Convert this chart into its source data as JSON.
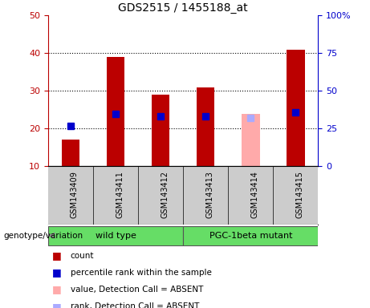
{
  "title": "GDS2515 / 1455188_at",
  "samples": [
    "GSM143409",
    "GSM143411",
    "GSM143412",
    "GSM143413",
    "GSM143414",
    "GSM143415"
  ],
  "count_values": [
    17,
    39,
    29,
    31,
    24,
    41
  ],
  "rank_values": [
    27,
    35,
    33,
    33,
    32,
    36
  ],
  "absent_flags": [
    false,
    false,
    false,
    false,
    true,
    false
  ],
  "bar_color_present": "#bb0000",
  "bar_color_absent": "#ffaaaa",
  "rank_color_present": "#0000cc",
  "rank_color_absent": "#aaaaff",
  "ylim_left": [
    10,
    50
  ],
  "ylim_right": [
    0,
    100
  ],
  "yticks_left": [
    10,
    20,
    30,
    40,
    50
  ],
  "yticks_right": [
    0,
    25,
    50,
    75,
    100
  ],
  "ytick_labels_right": [
    "0",
    "25",
    "50",
    "75",
    "100%"
  ],
  "grid_lines": [
    20,
    30,
    40
  ],
  "group1_label": "wild type",
  "group2_label": "PGC-1beta mutant",
  "group1_indices": [
    0,
    1,
    2
  ],
  "group2_indices": [
    3,
    4,
    5
  ],
  "group_color": "#66dd66",
  "xlabel_label": "genotype/variation",
  "legend_items": [
    {
      "label": "count",
      "color": "#bb0000"
    },
    {
      "label": "percentile rank within the sample",
      "color": "#0000cc"
    },
    {
      "label": "value, Detection Call = ABSENT",
      "color": "#ffaaaa"
    },
    {
      "label": "rank, Detection Call = ABSENT",
      "color": "#aaaaff"
    }
  ],
  "plot_bg_color": "#ffffff",
  "xtick_bg_color": "#cccccc",
  "bar_width": 0.4,
  "rank_marker_size": 6,
  "title_fontsize": 10,
  "axis_fontsize": 9,
  "tick_fontsize": 8,
  "label_fontsize": 8
}
